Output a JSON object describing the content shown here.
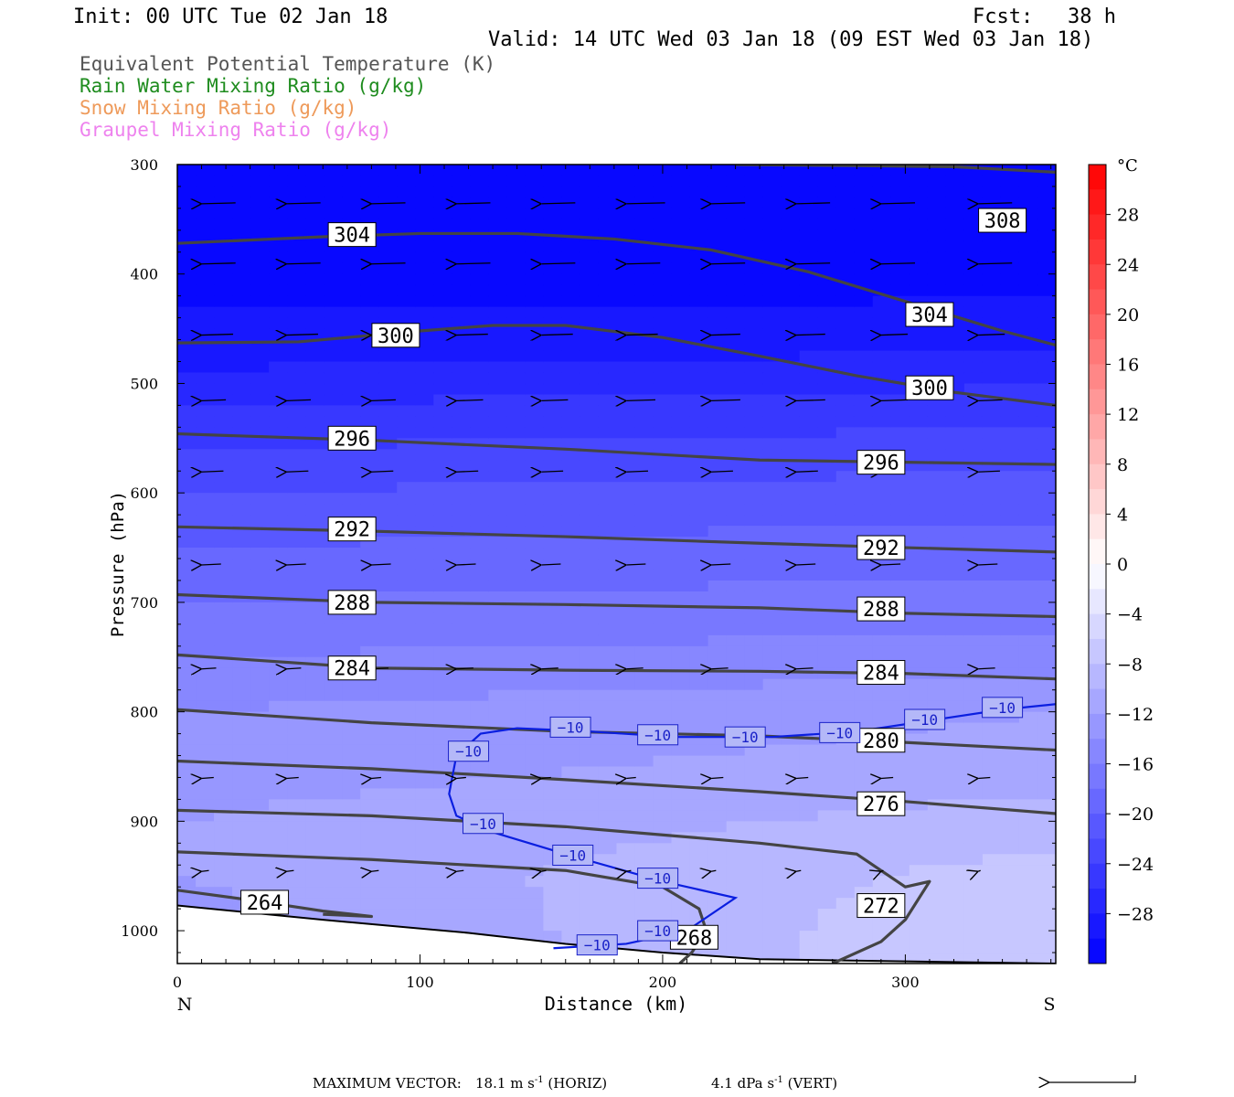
{
  "header": {
    "init": "Init: 00 UTC Tue 02 Jan 18",
    "fcst_label": "Fcst:",
    "fcst_value": "38 h",
    "valid": "Valid: 14 UTC Wed 03 Jan 18 (09 EST Wed 03 Jan 18)"
  },
  "legend": {
    "theta_e": {
      "label": "Equivalent Potential Temperature (K)",
      "color": "#555555"
    },
    "rain": {
      "label": "Rain Water Mixing Ratio (g/kg)",
      "color": "#1e8c1e"
    },
    "snow": {
      "label": "Snow Mixing Ratio (g/kg)",
      "color": "#ee9a5a"
    },
    "graupel": {
      "label": "Graupel Mixing Ratio (g/kg)",
      "color": "#ee82ee"
    }
  },
  "footer": {
    "label": "MAXIMUM VECTOR:",
    "horiz_value": "18.1",
    "horiz_unit": "m s",
    "horiz_sup": "-1",
    "horiz_tag": "(HORIZ)",
    "vert_value": "4.1",
    "vert_unit": "dPa s",
    "vert_sup": "-1",
    "vert_tag": "(VERT)"
  },
  "chart_data": {
    "type": "heatmap",
    "xlabel": "Distance (km)",
    "ylabel": "Pressure (hPa)",
    "x_range": [
      0,
      362
    ],
    "y_range": [
      300,
      1030
    ],
    "x_ticks": [
      0,
      100,
      200,
      300
    ],
    "y_ticks": [
      300,
      400,
      500,
      600,
      700,
      800,
      900,
      1000
    ],
    "x_end_labels": {
      "left": "N",
      "right": "S"
    },
    "colorbar": {
      "unit": "°C",
      "levels": [
        -32,
        -30,
        -28,
        -26,
        -24,
        -22,
        -20,
        -18,
        -16,
        -14,
        -12,
        -10,
        -8,
        -6,
        -4,
        -2,
        0,
        2,
        4,
        6,
        8,
        10,
        12,
        14,
        16,
        18,
        20,
        22,
        24,
        26,
        28,
        30,
        32
      ],
      "labels": [
        "28",
        "24",
        "20",
        "16",
        "12",
        "8",
        "4",
        "0",
        "−4",
        "−8",
        "−12",
        "−16",
        "−20",
        "−24",
        "−28"
      ],
      "label_values": [
        28,
        24,
        20,
        16,
        12,
        8,
        4,
        0,
        -4,
        -8,
        -12,
        -16,
        -20,
        -24,
        -28
      ]
    },
    "temperature_bands": [
      {
        "values": [
          -30,
          -30,
          -30,
          -30,
          -30,
          -30
        ],
        "x": [
          0,
          80,
          160,
          240,
          320,
          362
        ],
        "p_top": 300,
        "p_bottom": 410
      },
      {
        "values": [
          -28,
          -28,
          -28,
          -28,
          -28,
          -27
        ],
        "x": [
          0,
          80,
          160,
          240,
          320,
          362
        ],
        "p_top": 410,
        "p_bottom": 480
      }
    ],
    "temperature_profile": {
      "pressure": [
        300,
        400,
        470,
        520,
        560,
        600,
        650,
        700,
        750,
        800,
        850,
        900,
        950,
        1000,
        1030
      ],
      "north": [
        -31,
        -31,
        -29,
        -26,
        -24,
        -22,
        -20,
        -18,
        -16,
        -14,
        -13,
        -12,
        -12,
        -13,
        -13
      ],
      "south": [
        -31,
        -31,
        -28,
        -25,
        -23,
        -21,
        -19,
        -17,
        -15,
        -12,
        -11,
        -9,
        -7,
        -6,
        -6
      ]
    },
    "theta_e_contours": [
      {
        "value": 308,
        "x": [
          230,
          280,
          320,
          362
        ],
        "p": [
          300,
          301,
          302,
          307
        ],
        "label_x": 340,
        "label_p": 351
      },
      {
        "value": 304,
        "x": [
          0,
          60,
          100,
          140,
          180,
          220,
          260,
          300,
          340,
          362
        ],
        "p": [
          372,
          366,
          363,
          363,
          368,
          378,
          398,
          425,
          452,
          465
        ],
        "label_x": 72,
        "label_p": 364
      },
      {
        "value": 304,
        "x": [
          300
        ],
        "p": [
          437
        ],
        "label_x": 310,
        "label_p": 437,
        "label_only": true
      },
      {
        "value": 300,
        "x": [
          0,
          50,
          100,
          130,
          160,
          200,
          240,
          280,
          320,
          362
        ],
        "p": [
          463,
          462,
          452,
          447,
          447,
          458,
          475,
          493,
          508,
          520
        ],
        "label_x": 90,
        "label_p": 456
      },
      {
        "value": 300,
        "x": [
          310
        ],
        "p": [
          504
        ],
        "label_x": 310,
        "label_p": 504,
        "label_only": true
      },
      {
        "value": 296,
        "x": [
          0,
          80,
          160,
          240,
          300,
          362
        ],
        "p": [
          546,
          552,
          560,
          570,
          572,
          574
        ],
        "label_x": 72,
        "label_p": 550
      },
      {
        "value": 296,
        "x": [
          290
        ],
        "p": [
          572
        ],
        "label_x": 290,
        "label_p": 572,
        "label_only": true
      },
      {
        "value": 292,
        "x": [
          0,
          80,
          160,
          240,
          300,
          362
        ],
        "p": [
          631,
          635,
          640,
          646,
          650,
          654
        ],
        "label_x": 72,
        "label_p": 633
      },
      {
        "value": 292,
        "x": [
          290
        ],
        "p": [
          650
        ],
        "label_x": 290,
        "label_p": 650,
        "label_only": true
      },
      {
        "value": 288,
        "x": [
          0,
          80,
          160,
          240,
          300,
          362
        ],
        "p": [
          693,
          700,
          702,
          705,
          710,
          713
        ],
        "label_x": 72,
        "label_p": 700
      },
      {
        "value": 288,
        "x": [
          290
        ],
        "p": [
          706
        ],
        "label_x": 290,
        "label_p": 706,
        "label_only": true
      },
      {
        "value": 284,
        "x": [
          0,
          80,
          160,
          240,
          300,
          362
        ],
        "p": [
          748,
          760,
          762,
          763,
          765,
          770
        ],
        "label_x": 72,
        "label_p": 760
      },
      {
        "value": 284,
        "x": [
          290
        ],
        "p": [
          764
        ],
        "label_x": 290,
        "label_p": 764,
        "label_only": true
      },
      {
        "value": 280,
        "x": [
          0,
          80,
          160,
          240,
          300,
          362
        ],
        "p": [
          798,
          810,
          818,
          822,
          828,
          835
        ],
        "label_x": 290,
        "label_p": 826
      },
      {
        "value": 276,
        "x": [
          0,
          80,
          160,
          240,
          300,
          362
        ],
        "p": [
          845,
          852,
          862,
          873,
          882,
          893
        ],
        "label_x": 290,
        "label_p": 884
      },
      {
        "value": 272,
        "x": [
          0,
          80,
          160,
          240,
          280,
          300,
          310,
          300,
          290,
          270
        ],
        "p": [
          890,
          895,
          905,
          920,
          930,
          960,
          955,
          990,
          1010,
          1030
        ],
        "label_x": 290,
        "label_p": 977
      },
      {
        "value": 268,
        "x": [
          0,
          80,
          160,
          200,
          215,
          218,
          212,
          207
        ],
        "p": [
          928,
          935,
          945,
          960,
          980,
          1000,
          1020,
          1030
        ],
        "label_x": 213,
        "label_p": 1006
      },
      {
        "value": 264,
        "x": [
          0,
          30,
          60,
          80,
          60
        ],
        "p": [
          963,
          972,
          982,
          987,
          985
        ],
        "label_x": 36,
        "label_p": 974
      }
    ],
    "temperature_contour": {
      "value": -10,
      "labels": [
        "−10",
        "−10",
        "−10",
        "−10",
        "−10",
        "−10",
        "−10",
        "−10",
        "−10",
        "−10",
        "−10",
        "−10"
      ],
      "x": [
        362,
        340,
        310,
        280,
        245,
        205,
        170,
        140,
        125,
        115,
        112,
        115,
        130,
        160,
        200,
        230,
        210,
        185,
        155
      ],
      "p": [
        793,
        798,
        808,
        818,
        823,
        823,
        818,
        815,
        820,
        840,
        875,
        895,
        910,
        930,
        955,
        970,
        1000,
        1012,
        1016
      ],
      "label_positions": [
        {
          "x": 340,
          "p": 796
        },
        {
          "x": 308,
          "p": 807
        },
        {
          "x": 273,
          "p": 819
        },
        {
          "x": 234,
          "p": 823
        },
        {
          "x": 198,
          "p": 821
        },
        {
          "x": 162,
          "p": 814
        },
        {
          "x": 120,
          "p": 836
        },
        {
          "x": 126,
          "p": 902
        },
        {
          "x": 163,
          "p": 931
        },
        {
          "x": 198,
          "p": 952
        },
        {
          "x": 198,
          "p": 1000
        },
        {
          "x": 173,
          "p": 1013
        }
      ]
    },
    "terrain": {
      "x": [
        0,
        60,
        120,
        160,
        200,
        240,
        362
      ],
      "p": [
        977,
        990,
        1002,
        1012,
        1020,
        1026,
        1030
      ]
    },
    "wind_rows": [
      {
        "p": 335,
        "len_km": [
          14,
          14,
          14,
          14,
          14,
          16,
          14,
          14,
          14,
          14
        ]
      },
      {
        "p": 390,
        "len_km": [
          14,
          14,
          14,
          14,
          14,
          14,
          14,
          14,
          14,
          14
        ]
      },
      {
        "p": 455,
        "len_km": [
          13,
          13,
          13,
          13,
          13,
          13,
          12,
          12,
          11,
          11
        ]
      },
      {
        "p": 515,
        "len_km": [
          10,
          10,
          10,
          11,
          11,
          12,
          12,
          12,
          11,
          10
        ]
      },
      {
        "p": 580,
        "len_km": [
          9,
          9,
          9,
          9,
          9,
          9,
          9,
          9,
          9,
          9
        ]
      },
      {
        "p": 665,
        "len_km": [
          8,
          8,
          8,
          8,
          8,
          8,
          8,
          8,
          8,
          8
        ]
      },
      {
        "p": 760,
        "len_km": [
          6,
          6,
          7,
          7,
          7,
          7,
          7,
          7,
          7,
          7
        ]
      },
      {
        "p": 860,
        "len_km": [
          5,
          5,
          4,
          4,
          4,
          4,
          5,
          5,
          5,
          5
        ]
      },
      {
        "p": 945,
        "len_km": [
          3,
          3,
          3,
          3,
          2,
          2,
          2,
          2,
          1,
          1
        ]
      }
    ],
    "wind_x_km": [
      10,
      45,
      80,
      115,
      150,
      185,
      220,
      255,
      290,
      330
    ]
  }
}
